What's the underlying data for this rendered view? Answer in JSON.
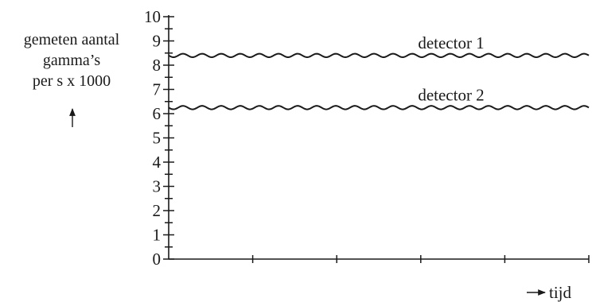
{
  "chart_data": {
    "type": "line",
    "ylabel_lines": [
      "gemeten aantal",
      "gamma’s",
      "per s x 1000"
    ],
    "xlabel": "tijd",
    "ylim": [
      0,
      10
    ],
    "yticks": [
      0,
      1,
      2,
      3,
      4,
      5,
      6,
      7,
      8,
      9,
      10
    ],
    "y_minor_step": 0.5,
    "x_major_ticks": 5,
    "grid": false,
    "series": [
      {
        "name": "detector 1",
        "value": 8.4
      },
      {
        "name": "detector 2",
        "value": 6.25
      }
    ]
  }
}
